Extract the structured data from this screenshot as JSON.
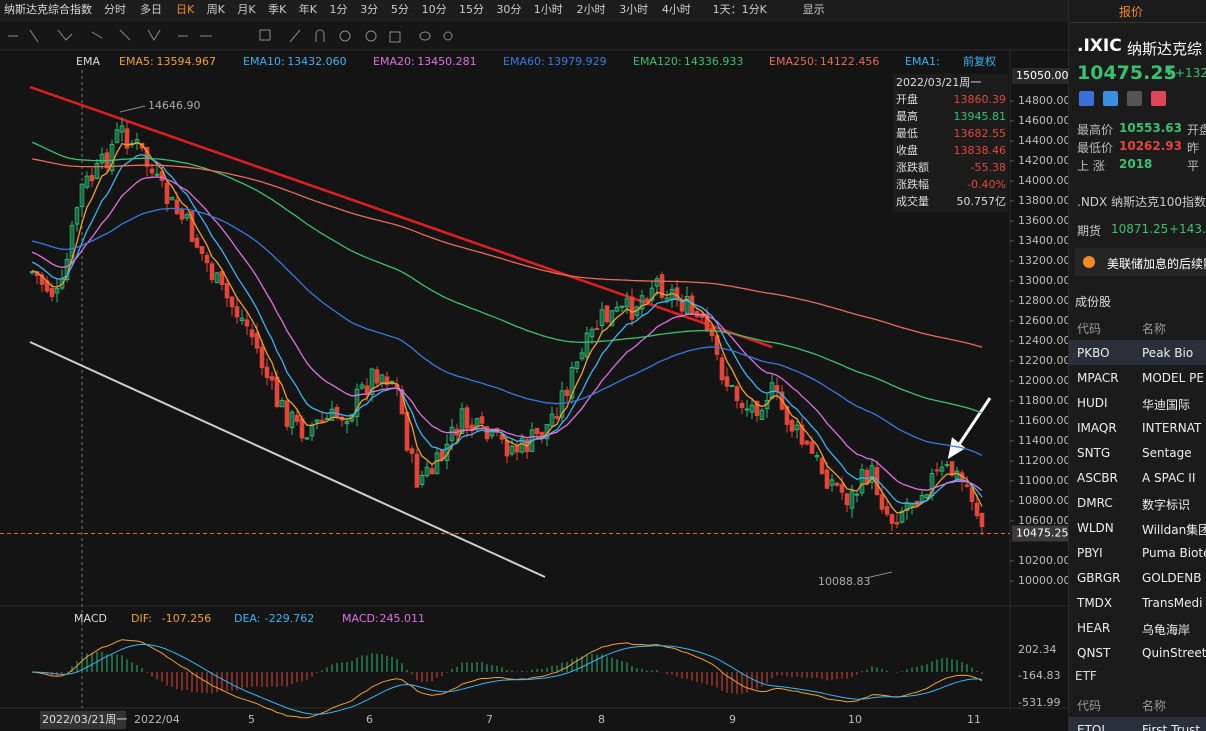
{
  "toolbar": {
    "title": "纳斯达克综合指数",
    "periods": [
      "分时",
      "多日",
      "日K",
      "周K",
      "月K",
      "季K",
      "年K",
      "1分",
      "3分",
      "5分",
      "10分",
      "15分",
      "30分",
      "1小时",
      "2小时",
      "3小时",
      "4小时"
    ],
    "cycle": "1天：1分K",
    "display": "显示"
  },
  "indicator": {
    "name": "EMA",
    "items": [
      {
        "label": "EMA5:",
        "value": "13594.967",
        "color": "#f0a030"
      },
      {
        "label": "EMA10:",
        "value": "13432.060",
        "color": "#3ab4f2"
      },
      {
        "label": "EMA20:",
        "value": "13450.281",
        "color": "#e070e0"
      },
      {
        "label": "EMA60:",
        "value": "13979.929",
        "color": "#3a78e0"
      },
      {
        "label": "EMA120:",
        "value": "14336.933",
        "color": "#3cc070"
      },
      {
        "label": "EMA250:",
        "value": "14122.456",
        "color": "#e86a5a"
      }
    ],
    "extra": "EMA1:",
    "adjust": "前复权"
  },
  "info": {
    "date": "2022/03/21周一",
    "rows": [
      [
        "开盘",
        "13860.39"
      ],
      [
        "最高",
        "13945.81"
      ],
      [
        "最低",
        "13682.55"
      ],
      [
        "收盘",
        "13838.46"
      ],
      [
        "涨跌额",
        "-55.38"
      ],
      [
        "涨跌幅",
        "-0.40%"
      ],
      [
        "成交量",
        "50.757亿"
      ]
    ]
  },
  "price_axis": {
    "ticks": [
      {
        "value": 14800,
        "label": "14800.00"
      },
      {
        "value": 14600,
        "label": "14600.00"
      },
      {
        "value": 14400,
        "label": "14400.00"
      },
      {
        "value": 14200,
        "label": "14200.00"
      },
      {
        "value": 14000,
        "label": "14000.00"
      },
      {
        "value": 13800,
        "label": "13800.00"
      },
      {
        "value": 13600,
        "label": "13600.00"
      },
      {
        "value": 13400,
        "label": "13400.00"
      },
      {
        "value": 13200,
        "label": "13200.00"
      },
      {
        "value": 13000,
        "label": "13000.00"
      },
      {
        "value": 12800,
        "label": "12800.00"
      },
      {
        "value": 12600,
        "label": "12600.00"
      },
      {
        "value": 12400,
        "label": "12400.00"
      },
      {
        "value": 12200,
        "label": "12200.00"
      },
      {
        "value": 12000,
        "label": "12000.00"
      },
      {
        "value": 11800,
        "label": "11800.00"
      },
      {
        "value": 11600,
        "label": "11600.00"
      },
      {
        "value": 11400,
        "label": "11400.00"
      },
      {
        "value": 11200,
        "label": "11200.00"
      },
      {
        "value": 11000,
        "label": "11000.00"
      },
      {
        "value": 10800,
        "label": "10800.00"
      },
      {
        "value": 10600,
        "label": "10600.00"
      },
      {
        "value": 10200,
        "label": "10200.00"
      },
      {
        "value": 10000,
        "label": "10000.00"
      }
    ],
    "top": {
      "value": 15050,
      "label": "15050.00"
    },
    "current": {
      "value": 10475.25,
      "label": "10475.25"
    }
  },
  "annotations": {
    "high": "14646.90",
    "low": "10088.83"
  },
  "macd": {
    "name": "MACD",
    "items": [
      {
        "label": "DIF:",
        "value": "-107.256",
        "color": "#f0a030"
      },
      {
        "label": "DEA:",
        "value": "-229.762",
        "color": "#3ab4f2"
      },
      {
        "label": "MACD:",
        "value": "245.011",
        "color": "#e070e0"
      }
    ],
    "ticks": [
      "202.34",
      "-164.83",
      "-531.99"
    ]
  },
  "x_axis": {
    "cursor": "2022/03/21周一",
    "labels": [
      "2022/04",
      "5",
      "6",
      "7",
      "8",
      "9",
      "10",
      "11"
    ]
  },
  "panel": {
    "tab": "报价",
    "symbol": ".IXIC",
    "name": "纳斯达克综",
    "price": "10475.25",
    "change": "+132",
    "stats": [
      [
        "最高价",
        "10553.63",
        "开盘"
      ],
      [
        "最低价",
        "10262.93",
        "昨"
      ],
      [
        "上  涨",
        "2018",
        "平"
      ]
    ],
    "related": ".NDX 纳斯达克100指数",
    "futures": {
      "label": "期货",
      "price": "10871.25",
      "change": "+143."
    },
    "news": "美联储加息的后续影",
    "section": "成份股",
    "header": [
      "代码",
      "名称"
    ],
    "rows": [
      [
        "PKBO",
        "Peak Bio"
      ],
      [
        "MPACR",
        "MODEL PE"
      ],
      [
        "HUDI",
        "华迪国际"
      ],
      [
        "IMAQR",
        "INTERNAT"
      ],
      [
        "SNTG",
        "Sentage"
      ],
      [
        "ASCBR",
        "A SPAC II"
      ],
      [
        "DMRC",
        "数字标识"
      ],
      [
        "WLDN",
        "Willdan集团"
      ],
      [
        "PBYI",
        "Puma Biote"
      ],
      [
        "GBRGR",
        "GOLDENB"
      ],
      [
        "TMDX",
        "TransMedi"
      ],
      [
        "HEAR",
        "乌龟海岸"
      ],
      [
        "QNST",
        "QuinStreet"
      ]
    ],
    "etf": "ETF",
    "etf_header": [
      "代码",
      "名称"
    ],
    "etf_rows": [
      [
        "ETQL",
        "First Trust"
      ]
    ]
  }
}
